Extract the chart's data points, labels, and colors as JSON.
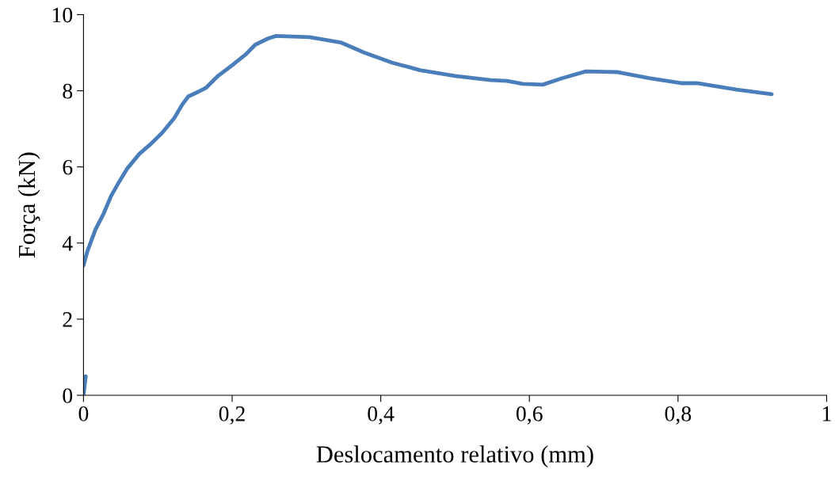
{
  "chart_data": {
    "type": "line",
    "xlabel": "Deslocamento relativo (mm)",
    "ylabel": "Força (kN)",
    "x": [
      0,
      0.003,
      null,
      0,
      0.005,
      0.016,
      0.027,
      0.037,
      0.048,
      0.059,
      0.075,
      0.091,
      0.106,
      0.122,
      0.133,
      0.141,
      0.152,
      0.165,
      0.181,
      0.202,
      0.218,
      0.231,
      0.248,
      0.259,
      0.304,
      0.346,
      0.378,
      0.415,
      0.453,
      0.5,
      0.548,
      0.57,
      0.591,
      0.618,
      0.644,
      0.676,
      0.719,
      0.761,
      0.804,
      0.825,
      0.879,
      0.926
    ],
    "series": [
      {
        "color": "#4a7ebb",
        "values": [
          0,
          0.5,
          null,
          3.41,
          3.77,
          4.35,
          4.77,
          5.23,
          5.61,
          5.96,
          6.34,
          6.61,
          6.9,
          7.28,
          7.64,
          7.85,
          7.95,
          8.08,
          8.39,
          8.7,
          8.95,
          9.21,
          9.37,
          9.44,
          9.41,
          9.27,
          9.0,
          8.74,
          8.54,
          8.39,
          8.28,
          8.26,
          8.18,
          8.16,
          8.33,
          8.51,
          8.49,
          8.33,
          8.2,
          8.2,
          8.03,
          7.91
        ]
      }
    ],
    "xlim": [
      0,
      1
    ],
    "ylim": [
      0,
      10
    ],
    "xticks": [
      0,
      {
        "value": 0.2,
        "label": "0,2"
      },
      {
        "value": 0.4,
        "label": "0,4"
      },
      {
        "value": 0.6,
        "label": "0,6"
      },
      {
        "value": 0.8,
        "label": "0,8"
      },
      1
    ],
    "yticks": [
      0,
      2,
      4,
      6,
      8,
      10
    ],
    "grid": false,
    "marker": "none",
    "line_style": "solid"
  }
}
